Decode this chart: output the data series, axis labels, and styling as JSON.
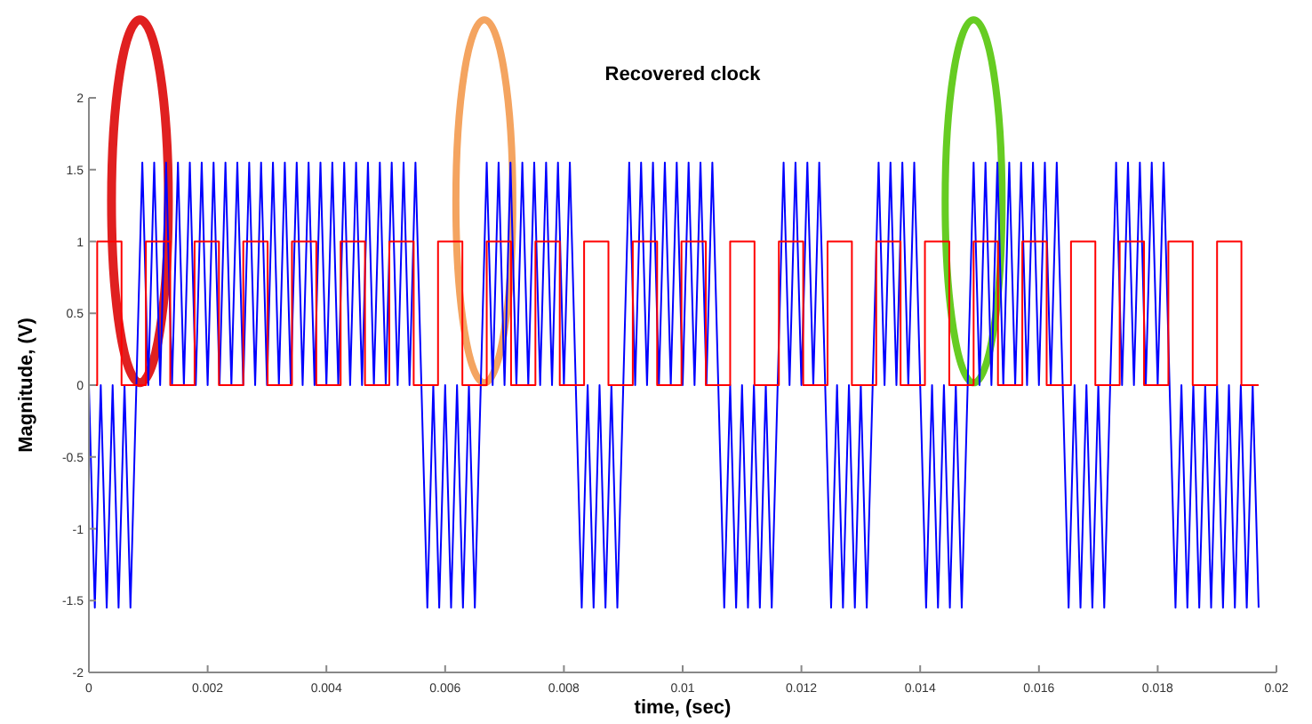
{
  "chart_data": {
    "type": "line",
    "title": "Recovered clock",
    "xlabel": "time, (sec)",
    "ylabel": "Magnitude, (V)",
    "xlim": [
      0,
      0.02
    ],
    "xticks": [
      0,
      0.002,
      0.004,
      0.006,
      0.008,
      0.01,
      0.012,
      0.014,
      0.016,
      0.018,
      0.02
    ],
    "ylim": [
      -2,
      2
    ],
    "yticks": [
      -2,
      -1.5,
      -1,
      -0.5,
      0,
      0.5,
      1,
      1.5,
      2
    ],
    "grid": false,
    "series": [
      {
        "color": "#0000ff",
        "x": [
          0,
          0.0001,
          0.0002,
          0.0003,
          0.0004,
          0.0005,
          0.0006,
          0.0007,
          0.0008,
          0.0009,
          0.001,
          0.0011,
          0.0012,
          0.0013,
          0.0014,
          0.0015,
          0.0016,
          0.0017,
          0.0018,
          0.0019,
          0.002,
          0.0021,
          0.0022,
          0.0023,
          0.0024,
          0.0025,
          0.0026,
          0.0027,
          0.0028,
          0.0029,
          0.003,
          0.0031,
          0.0032,
          0.0033,
          0.0034,
          0.0035,
          0.0036,
          0.0037,
          0.0038,
          0.0039,
          0.004,
          0.0041,
          0.0042,
          0.0043,
          0.0044,
          0.0045,
          0.0046,
          0.0047,
          0.0048,
          0.0049,
          0.005,
          0.0051,
          0.0052,
          0.0053,
          0.0054,
          0.0055,
          0.0056,
          0.0057,
          0.0058,
          0.0059,
          0.006,
          0.0061,
          0.0062,
          0.0063,
          0.0064,
          0.0065,
          0.0066,
          0.0067,
          0.0068,
          0.0069,
          0.007,
          0.0071,
          0.0072,
          0.0073,
          0.0074,
          0.0075,
          0.0076,
          0.0077,
          0.0078,
          0.0079,
          0.008,
          0.0081,
          0.0082,
          0.0083,
          0.0084,
          0.0085,
          0.0086,
          0.0087,
          0.0088,
          0.0089,
          0.009,
          0.0091,
          0.0092,
          0.0093,
          0.0094,
          0.0095,
          0.0096,
          0.0097,
          0.0098,
          0.0099,
          0.01,
          0.0101,
          0.0102,
          0.0103,
          0.0104,
          0.0105,
          0.0106,
          0.0107,
          0.0108,
          0.0109,
          0.011,
          0.0111,
          0.0112,
          0.0113,
          0.0114,
          0.0115,
          0.0116,
          0.0117,
          0.0118,
          0.0119,
          0.012,
          0.0121,
          0.0122,
          0.0123,
          0.0124,
          0.0125,
          0.0126,
          0.0127,
          0.0128,
          0.0129,
          0.013,
          0.0131,
          0.0132,
          0.0133,
          0.0134,
          0.0135,
          0.0136,
          0.0137,
          0.0138,
          0.0139,
          0.014,
          0.0141,
          0.0142,
          0.0143,
          0.0144,
          0.0145,
          0.0146,
          0.0147,
          0.0148,
          0.0149,
          0.015,
          0.0151,
          0.0152,
          0.0153,
          0.0154,
          0.0155,
          0.0156,
          0.0157,
          0.0158,
          0.0159,
          0.016,
          0.0161,
          0.0162,
          0.0163,
          0.0164,
          0.0165,
          0.0166,
          0.0167,
          0.0168,
          0.0169,
          0.017,
          0.0171,
          0.0172,
          0.0173,
          0.0174,
          0.0175,
          0.0176,
          0.0177,
          0.0178,
          0.0179,
          0.018,
          0.0181,
          0.0182,
          0.0183,
          0.0184,
          0.0185,
          0.0186,
          0.0187,
          0.0188,
          0.0189,
          0.019,
          0.0191,
          0.0192,
          0.0193,
          0.0194,
          0.0195,
          0.0196,
          0.0197
        ],
        "values": [
          0,
          -1.55,
          0,
          -1.55,
          0,
          -1.55,
          0,
          -1.55,
          0,
          1.55,
          0,
          1.55,
          0,
          1.55,
          0,
          1.55,
          0,
          1.55,
          0,
          1.55,
          0,
          1.55,
          0,
          1.55,
          0,
          1.55,
          0,
          1.55,
          0,
          1.55,
          0,
          1.55,
          0,
          1.55,
          0,
          1.55,
          0,
          1.55,
          0,
          1.55,
          0,
          1.55,
          0,
          1.55,
          0,
          1.55,
          0,
          1.55,
          0,
          1.55,
          0,
          1.55,
          0,
          1.55,
          0,
          1.55,
          0,
          -1.55,
          0,
          -1.55,
          0,
          -1.55,
          0,
          -1.55,
          0,
          -1.55,
          0,
          1.55,
          0,
          1.55,
          0,
          1.55,
          0,
          1.55,
          0,
          1.55,
          0,
          1.55,
          0,
          1.55,
          0,
          1.55,
          0,
          -1.55,
          0,
          -1.55,
          0,
          -1.55,
          0,
          -1.55,
          0,
          1.55,
          0,
          1.55,
          0,
          1.55,
          0,
          1.55,
          0,
          1.55,
          0,
          1.55,
          0,
          1.55,
          0,
          1.55,
          0,
          -1.55,
          0,
          -1.55,
          0,
          -1.55,
          0,
          -1.55,
          0,
          -1.55,
          0,
          1.55,
          0,
          1.55,
          0,
          1.55,
          0,
          1.55,
          0,
          -1.55,
          0,
          -1.55,
          0,
          -1.55,
          0,
          -1.55,
          0,
          1.55,
          0,
          1.55,
          0,
          1.55,
          0,
          1.55,
          0,
          -1.55,
          0,
          -1.55,
          0,
          -1.55,
          0,
          -1.55,
          0,
          1.55,
          0,
          1.55,
          0,
          1.55,
          0,
          1.55,
          0,
          1.55,
          0,
          1.55,
          0,
          1.55,
          0,
          1.55,
          0,
          -1.55,
          0,
          -1.55,
          0,
          -1.55,
          0,
          -1.55,
          0,
          1.55,
          0,
          1.55,
          0,
          1.55,
          0,
          1.55,
          0,
          1.55,
          0,
          -1.55,
          0,
          -1.55,
          0,
          -1.55,
          0,
          -1.55,
          0,
          -1.55,
          0,
          -1.55,
          0,
          -1.55,
          0,
          -1.55
        ]
      },
      {
        "type": "step",
        "color": "#ff0000",
        "x": [
          0,
          0.00014,
          0.00055,
          0.00096,
          0.00137,
          0.00178,
          0.00219,
          0.0026,
          0.00301,
          0.00342,
          0.00383,
          0.00424,
          0.00465,
          0.00506,
          0.00547,
          0.00588,
          0.00629,
          0.0067,
          0.00711,
          0.00752,
          0.00793,
          0.00834,
          0.00875,
          0.00916,
          0.00957,
          0.00998,
          0.01039,
          0.0108,
          0.01121,
          0.01162,
          0.01203,
          0.01244,
          0.01285,
          0.01326,
          0.01367,
          0.01408,
          0.01449,
          0.0149,
          0.01531,
          0.01572,
          0.01613,
          0.01654,
          0.01695,
          0.01736,
          0.01777,
          0.01818,
          0.01859,
          0.019,
          0.01941,
          0.0197
        ],
        "values": [
          0,
          1,
          0,
          1,
          0,
          1,
          0,
          1,
          0,
          1,
          0,
          1,
          0,
          1,
          0,
          1,
          0,
          1,
          0,
          1,
          0,
          1,
          0,
          1,
          0,
          1,
          0,
          1,
          0,
          1,
          0,
          1,
          0,
          1,
          0,
          1,
          0,
          1,
          0,
          1,
          0,
          1,
          0,
          1,
          0,
          1,
          0,
          1,
          0,
          0
        ]
      }
    ]
  }
}
